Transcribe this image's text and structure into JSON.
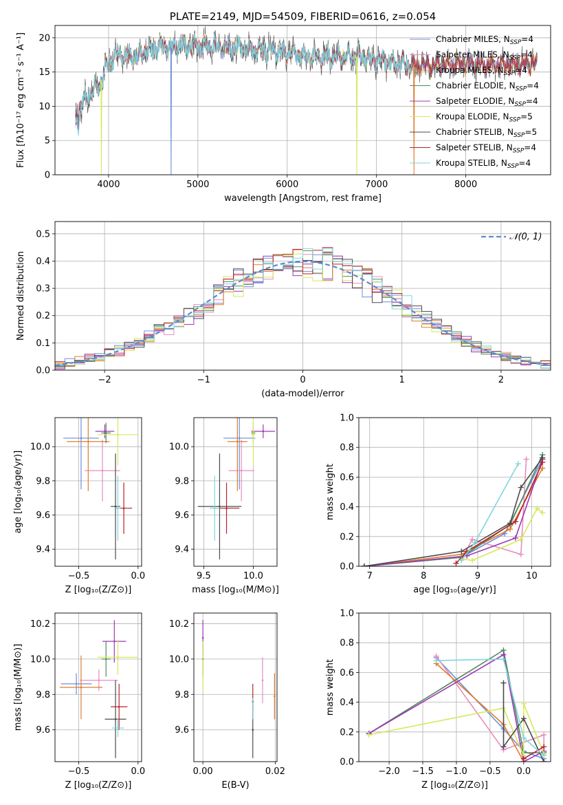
{
  "colors": {
    "series": [
      "#6c8ed8",
      "#e68cc0",
      "#e07b2a",
      "#4f8a5a",
      "#9c37b8",
      "#d6e85a",
      "#4a4a4a",
      "#b8222a",
      "#7fd6df"
    ]
  },
  "chart_data": [
    {
      "id": "spectrum",
      "type": "line",
      "title": "PLATE=2149, MJD=54509, FIBERID=0616, z=0.054",
      "xlabel": "wavelength [Angstrom, rest frame]",
      "ylabel": "Flux [fλ10⁻¹⁷ erg cm⁻² s⁻¹ A⁻¹]",
      "xlim": [
        3400,
        8950
      ],
      "ylim": [
        0,
        21.8
      ],
      "xticks": [
        4000,
        5000,
        6000,
        7000,
        8000
      ],
      "yticks": [
        0,
        5,
        10,
        15,
        20
      ],
      "continuum": {
        "x": [
          3630,
          3700,
          3800,
          3900,
          3950,
          4000,
          4100,
          4200,
          4300,
          4400,
          4500,
          4600,
          4700,
          4800,
          4900,
          5000,
          5200,
          5400,
          5600,
          5800,
          6000,
          6200,
          6400,
          6600,
          6800,
          7000,
          7200,
          7400,
          7600,
          7800,
          8000,
          8200,
          8400,
          8600,
          8800
        ],
        "y": [
          9.5,
          10.5,
          12.0,
          13.0,
          15.0,
          16.5,
          17.5,
          17.5,
          17.0,
          18.0,
          18.5,
          18.5,
          18.5,
          18.8,
          18.8,
          18.7,
          18.8,
          18.5,
          18.3,
          18.3,
          17.8,
          17.3,
          17.2,
          17.3,
          17.2,
          16.8,
          16.3,
          16.0,
          16.0,
          16.0,
          16.2,
          16.1,
          16.0,
          16.1,
          16.3
        ]
      },
      "dips": [
        {
          "x": 3920,
          "series": 5,
          "y": 0
        },
        {
          "x": 4700,
          "series": 0,
          "y": 0
        },
        {
          "x": 6780,
          "series": 5,
          "y": 0
        },
        {
          "x": 7420,
          "series": 2,
          "y": 0
        }
      ],
      "legend_position": "upper-right",
      "legend": [
        {
          "label": "Chabrier MILES, N",
          "sub": "SSP",
          "eq": "=4"
        },
        {
          "label": "Salpeter MILES, N",
          "sub": "SSP",
          "eq": "=4"
        },
        {
          "label": "Kroupa MILES, N",
          "sub": "SSP",
          "eq": "=4"
        },
        {
          "label": "Chabrier ELODIE, N",
          "sub": "SSP",
          "eq": "=4"
        },
        {
          "label": "Salpeter ELODIE, N",
          "sub": "SSP",
          "eq": "=4"
        },
        {
          "label": "Kroupa ELODIE, N",
          "sub": "SSP",
          "eq": "=5"
        },
        {
          "label": "Chabrier STELIB, N",
          "sub": "SSP",
          "eq": "=5"
        },
        {
          "label": "Salpeter STELIB, N",
          "sub": "SSP",
          "eq": "=4"
        },
        {
          "label": "Kroupa STELIB, N",
          "sub": "SSP",
          "eq": "=4"
        }
      ]
    },
    {
      "id": "residuals",
      "type": "line",
      "xlabel": "(data-model)/error",
      "ylabel": "Normed distribution",
      "xlim": [
        -2.5,
        2.5
      ],
      "ylim": [
        0,
        0.545
      ],
      "xticks": [
        -2,
        -1,
        0,
        1,
        2
      ],
      "yticks": [
        0.0,
        0.1,
        0.2,
        0.3,
        0.4,
        0.5
      ],
      "legend_label": "𝒩(0, 1)",
      "bin_width": 0.1
    },
    {
      "id": "age-vs-Z",
      "type": "scatter",
      "xlabel": "Z [log₁₀(Z/Z⊙)]",
      "ylabel": "age  [log₁₀(age/yr)]",
      "xlim": [
        -0.7,
        0.03
      ],
      "ylim": [
        9.3,
        10.17
      ],
      "xticks": [
        -0.5,
        0.0
      ],
      "yticks": [
        9.4,
        9.6,
        9.8,
        10.0
      ],
      "points": [
        {
          "s": 0,
          "x": -0.48,
          "y": 10.05,
          "ex": 0.15,
          "ey": 0.3
        },
        {
          "s": 1,
          "x": -0.3,
          "y": 9.86,
          "ex": 0.15,
          "ey": 0.18
        },
        {
          "s": 2,
          "x": -0.42,
          "y": 10.03,
          "ex": 0.18,
          "ey": 0.29
        },
        {
          "s": 3,
          "x": -0.27,
          "y": 10.08,
          "ex": 0.04,
          "ey": 0.06
        },
        {
          "s": 4,
          "x": -0.28,
          "y": 10.09,
          "ex": 0.08,
          "ey": 0.04
        },
        {
          "s": 5,
          "x": -0.17,
          "y": 10.07,
          "ex": 0.17,
          "ey": 0.18
        },
        {
          "s": 6,
          "x": -0.19,
          "y": 9.65,
          "ex": 0.04,
          "ey": 0.31
        },
        {
          "s": 7,
          "x": -0.12,
          "y": 9.64,
          "ex": 0.07,
          "ey": 0.15
        },
        {
          "s": 8,
          "x": -0.17,
          "y": 9.64,
          "ex": 0.02,
          "ey": 0.19
        }
      ]
    },
    {
      "id": "age-vs-mass",
      "type": "scatter",
      "xlabel": "mass [log₁₀(M/M⊙)]",
      "ylabel": "",
      "xlim": [
        9.4,
        10.24
      ],
      "ylim": [
        9.3,
        10.17
      ],
      "xticks": [
        9.5,
        10.0
      ],
      "yticks": [
        9.4,
        9.6,
        9.8,
        10.0
      ],
      "points": [
        {
          "s": 0,
          "x": 9.86,
          "y": 10.05,
          "ex": 0.16,
          "ey": 0.3
        },
        {
          "s": 1,
          "x": 9.88,
          "y": 9.86,
          "ex": 0.13,
          "ey": 0.18
        },
        {
          "s": 2,
          "x": 9.84,
          "y": 10.03,
          "ex": 0.1,
          "ey": 0.29
        },
        {
          "s": 3,
          "x": 10.0,
          "y": 10.08,
          "ex": 0.02,
          "ey": 0.06
        },
        {
          "s": 4,
          "x": 10.1,
          "y": 10.09,
          "ex": 0.12,
          "ey": 0.04
        },
        {
          "s": 5,
          "x": 10.0,
          "y": 10.07,
          "ex": 0.02,
          "ey": 0.18
        },
        {
          "s": 6,
          "x": 9.66,
          "y": 9.65,
          "ex": 0.22,
          "ey": 0.31
        },
        {
          "s": 7,
          "x": 9.73,
          "y": 9.64,
          "ex": 0.13,
          "ey": 0.15
        },
        {
          "s": 8,
          "x": 9.61,
          "y": 9.64,
          "ex": 0.05,
          "ey": 0.19
        }
      ]
    },
    {
      "id": "mass-weight-vs-age",
      "type": "line",
      "xlabel": "age  [log₁₀(age/yr)]",
      "ylabel": "mass weight",
      "xlim": [
        6.8,
        10.35
      ],
      "ylim": [
        0,
        1.0
      ],
      "xticks": [
        7,
        8,
        9,
        10
      ],
      "yticks": [
        0.0,
        0.2,
        0.4,
        0.6,
        0.8,
        1.0
      ],
      "lines": [
        {
          "s": 0,
          "x": [
            6.9,
            8.7,
            9.5,
            10.2
          ],
          "y": [
            0.0,
            0.06,
            0.22,
            0.72
          ]
        },
        {
          "s": 1,
          "x": [
            8.7,
            8.9,
            9.8,
            9.9
          ],
          "y": [
            0.05,
            0.18,
            0.08,
            0.72
          ]
        },
        {
          "s": 2,
          "x": [
            6.9,
            8.7,
            9.6,
            10.2
          ],
          "y": [
            0.0,
            0.08,
            0.25,
            0.66
          ]
        },
        {
          "s": 3,
          "x": [
            6.9,
            8.7,
            9.6,
            10.2
          ],
          "y": [
            0.0,
            0.06,
            0.28,
            0.75
          ]
        },
        {
          "s": 4,
          "x": [
            6.9,
            8.8,
            9.7,
            10.2
          ],
          "y": [
            0.0,
            0.07,
            0.19,
            0.72
          ]
        },
        {
          "s": 5,
          "x": [
            8.7,
            8.9,
            9.8,
            10.1,
            10.2
          ],
          "y": [
            0.05,
            0.04,
            0.18,
            0.39,
            0.36
          ]
        },
        {
          "s": 6,
          "x": [
            6.9,
            8.7,
            9.6,
            9.8,
            10.2
          ],
          "y": [
            0.0,
            0.1,
            0.29,
            0.53,
            0.73
          ]
        },
        {
          "s": 7,
          "x": [
            8.6,
            8.8,
            9.7,
            10.2
          ],
          "y": [
            0.02,
            0.1,
            0.3,
            0.7
          ]
        },
        {
          "s": 8,
          "x": [
            8.7,
            8.95,
            9.75
          ],
          "y": [
            0.04,
            0.16,
            0.69
          ]
        }
      ]
    },
    {
      "id": "mass-vs-Z",
      "type": "scatter",
      "xlabel": "Z [log₁₀(Z/Z⊙)]",
      "ylabel": "mass [log₁₀(M/M⊙)]",
      "xlim": [
        -0.7,
        0.03
      ],
      "ylim": [
        9.42,
        10.26
      ],
      "xticks": [
        -0.5,
        0.0
      ],
      "yticks": [
        9.6,
        9.8,
        10.0,
        10.2
      ],
      "points": [
        {
          "s": 0,
          "x": -0.52,
          "y": 9.86,
          "ex": 0.13,
          "ey": 0.06
        },
        {
          "s": 1,
          "x": -0.33,
          "y": 9.88,
          "ex": 0.16,
          "ey": 0.06
        },
        {
          "s": 2,
          "x": -0.48,
          "y": 9.84,
          "ex": 0.18,
          "ey": 0.18
        },
        {
          "s": 3,
          "x": -0.27,
          "y": 10.0,
          "ex": 0.04,
          "ey": 0.1
        },
        {
          "s": 4,
          "x": -0.2,
          "y": 10.1,
          "ex": 0.1,
          "ey": 0.12
        },
        {
          "s": 5,
          "x": -0.17,
          "y": 10.01,
          "ex": 0.17,
          "ey": 0.1
        },
        {
          "s": 6,
          "x": -0.19,
          "y": 9.66,
          "ex": 0.09,
          "ey": 0.22
        },
        {
          "s": 7,
          "x": -0.16,
          "y": 9.73,
          "ex": 0.07,
          "ey": 0.13
        },
        {
          "s": 8,
          "x": -0.17,
          "y": 9.61,
          "ex": 0.05,
          "ey": 0.05
        }
      ]
    },
    {
      "id": "mass-vs-EBV",
      "type": "scatter",
      "xlabel": "E(B-V)",
      "ylabel": "",
      "xlim": [
        -0.0025,
        0.0205
      ],
      "ylim": [
        9.42,
        10.26
      ],
      "xticks": [
        0.0,
        0.02
      ],
      "xtick_labels": [
        "0.00",
        "0.02"
      ],
      "yticks": [
        9.6,
        9.8,
        10.0,
        10.2
      ],
      "points": [
        {
          "s": 0,
          "x": 0.0,
          "y": 10.0,
          "ex": 0.0,
          "ey": 0.1
        },
        {
          "s": 1,
          "x": 0.0165,
          "y": 9.88,
          "ex": 0.0,
          "ey": 0.13
        },
        {
          "s": 2,
          "x": 0.0198,
          "y": 9.79,
          "ex": 0.0,
          "ey": 0.13
        },
        {
          "s": 3,
          "x": 0.0,
          "y": 10.0,
          "ex": 0.0,
          "ey": 0.1
        },
        {
          "s": 4,
          "x": 0.0,
          "y": 10.12,
          "ex": 0.0,
          "ey": 0.1
        },
        {
          "s": 5,
          "x": 0.0,
          "y": 9.96,
          "ex": 0.0,
          "ey": 0.14
        },
        {
          "s": 6,
          "x": 0.0138,
          "y": 9.6,
          "ex": 0.0,
          "ey": 0.16
        },
        {
          "s": 7,
          "x": 0.0138,
          "y": 9.76,
          "ex": 0.0,
          "ey": 0.1
        },
        {
          "s": 8,
          "x": 0.0138,
          "y": 9.72,
          "ex": 0.0,
          "ey": 0.06
        }
      ]
    },
    {
      "id": "mass-weight-vs-Z",
      "type": "line",
      "xlabel": "Z [log₁₀(Z/Z⊙)]",
      "ylabel": "mass weight",
      "xlim": [
        -2.45,
        0.4
      ],
      "ylim": [
        0,
        1.0
      ],
      "xticks": [
        -2.0,
        -1.5,
        -1.0,
        -0.5,
        0.0
      ],
      "yticks": [
        0.0,
        0.2,
        0.4,
        0.6,
        0.8,
        1.0
      ],
      "lines": [
        {
          "s": 0,
          "x": [
            -1.3,
            -0.3,
            0.0,
            0.3
          ],
          "y": [
            0.7,
            0.22,
            0.07,
            0.02
          ]
        },
        {
          "s": 1,
          "x": [
            -1.3,
            -0.3,
            0.3,
            0.3
          ],
          "y": [
            0.71,
            0.08,
            0.18,
            0.0
          ]
        },
        {
          "s": 2,
          "x": [
            -1.3,
            -0.3,
            0.0
          ],
          "y": [
            0.66,
            0.25,
            0.0
          ]
        },
        {
          "s": 3,
          "x": [
            -2.3,
            -0.3,
            0.0,
            0.3
          ],
          "y": [
            0.19,
            0.75,
            0.06,
            0.06
          ]
        },
        {
          "s": 4,
          "x": [
            -2.3,
            -0.3,
            0.0,
            0.3
          ],
          "y": [
            0.19,
            0.72,
            0.0,
            0.07
          ]
        },
        {
          "s": 5,
          "x": [
            -2.3,
            -0.3,
            0.0,
            0.0,
            0.3
          ],
          "y": [
            0.18,
            0.36,
            0.04,
            0.39,
            0.05
          ]
        },
        {
          "s": 6,
          "x": [
            -0.3,
            -0.3,
            0.0,
            0.3
          ],
          "y": [
            0.53,
            0.1,
            0.29,
            0.0
          ]
        },
        {
          "s": 7,
          "x": [
            0.0,
            0.3
          ],
          "y": [
            0.02,
            0.1
          ]
        },
        {
          "s": 8,
          "x": [
            -1.3,
            -0.3,
            0.0,
            0.3
          ],
          "y": [
            0.68,
            0.69,
            0.16,
            0.04
          ]
        }
      ]
    }
  ]
}
